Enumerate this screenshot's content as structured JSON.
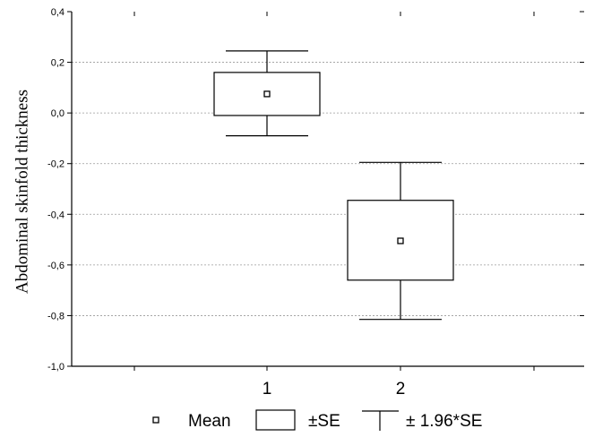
{
  "chart_data": {
    "type": "box",
    "title": "",
    "xlabel": "",
    "ylabel": "Abdominal skinfold thickness",
    "ylim": [
      -1.0,
      0.4
    ],
    "yticks": [
      "0,4",
      "0,2",
      "0,0",
      "-0,2",
      "-0,4",
      "-0,6",
      "-0,8",
      "-1,0"
    ],
    "ytick_values": [
      0.4,
      0.2,
      0.0,
      -0.2,
      -0.4,
      -0.6,
      -0.8,
      -1.0
    ],
    "categories": [
      "1",
      "2"
    ],
    "grid": true,
    "legend_placement": "bottom",
    "groups": [
      {
        "category": "1",
        "mean": 0.075,
        "se_low": -0.01,
        "se_high": 0.16,
        "ci_low": -0.09,
        "ci_high": 0.245
      },
      {
        "category": "2",
        "mean": -0.505,
        "se_low": -0.66,
        "se_high": -0.345,
        "ci_low": -0.815,
        "ci_high": -0.195
      }
    ],
    "legend": {
      "mean_label": "Mean",
      "se_label": "±SE",
      "ci_label": "± 1.96*SE"
    }
  }
}
